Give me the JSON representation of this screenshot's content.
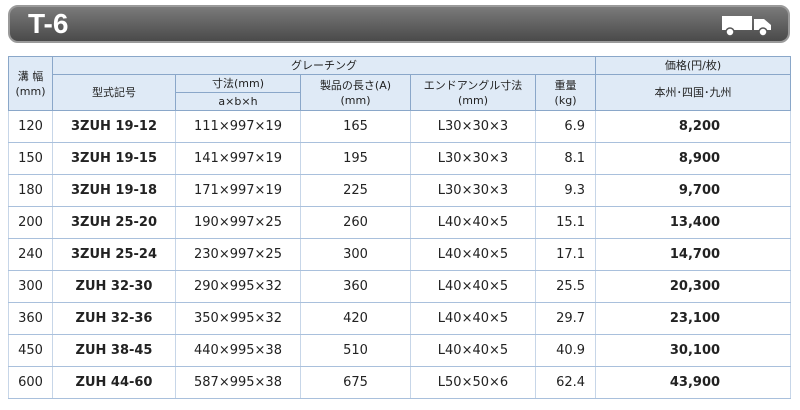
{
  "header": {
    "title": "T-6"
  },
  "table": {
    "columns": {
      "width": [
        "溝 幅",
        "(mm)"
      ],
      "grating": "グレーチング",
      "price": "価格(円/枚)",
      "model": "型式記号",
      "size": "寸法(mm)",
      "size_sub": "a×b×h",
      "length": [
        "製品の長さ(A)",
        "(mm)"
      ],
      "angle": [
        "エンドアングル寸法",
        "(mm)"
      ],
      "weight": [
        "重量",
        "(kg)"
      ],
      "region": "本州･四国･九州"
    },
    "rows": [
      [
        "120",
        "3ZUH 19-12",
        "111×997×19",
        "165",
        "L30×30×3",
        "6.9",
        "8,200"
      ],
      [
        "150",
        "3ZUH 19-15",
        "141×997×19",
        "195",
        "L30×30×3",
        "8.1",
        "8,900"
      ],
      [
        "180",
        "3ZUH 19-18",
        "171×997×19",
        "225",
        "L30×30×3",
        "9.3",
        "9,700"
      ],
      [
        "200",
        "3ZUH 25-20",
        "190×997×25",
        "260",
        "L40×40×5",
        "15.1",
        "13,400"
      ],
      [
        "240",
        "3ZUH 25-24",
        "230×997×25",
        "300",
        "L40×40×5",
        "17.1",
        "14,700"
      ],
      [
        "300",
        "ZUH 32-30",
        "290×995×32",
        "360",
        "L40×40×5",
        "25.5",
        "20,300"
      ],
      [
        "360",
        "ZUH 32-36",
        "350×995×32",
        "420",
        "L40×40×5",
        "29.7",
        "23,100"
      ],
      [
        "450",
        "ZUH 38-45",
        "440×995×38",
        "510",
        "L40×40×5",
        "40.9",
        "30,100"
      ],
      [
        "600",
        "ZUH 44-60",
        "587×995×38",
        "675",
        "L50×50×6",
        "62.4",
        "43,900"
      ]
    ]
  }
}
